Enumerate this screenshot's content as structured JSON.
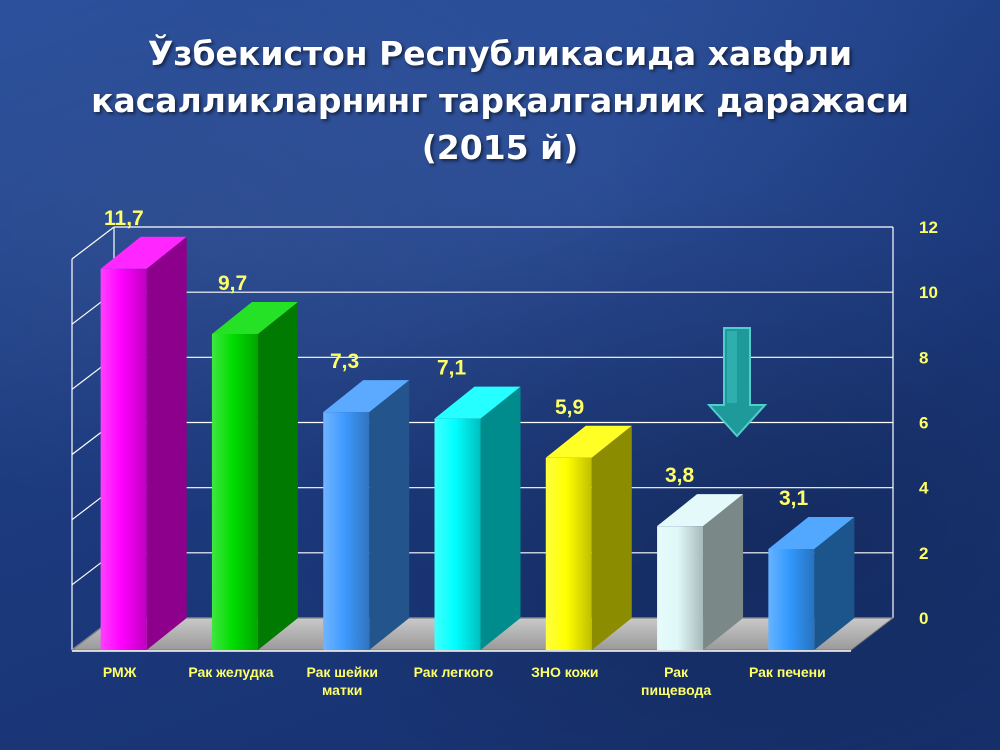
{
  "title": {
    "line1": "Ўзбекистон Республикасида хавфли",
    "line2": "касалликларнинг тарқалганлик даражаси",
    "line3": "(2015 й)"
  },
  "chart_data": {
    "type": "bar",
    "categories": [
      [
        "РМЖ"
      ],
      [
        "Рак желудка"
      ],
      [
        "Рак шейки",
        "матки"
      ],
      [
        "Рак легкого"
      ],
      [
        "ЗНО кожи"
      ],
      [
        "Рак",
        "пищевода"
      ],
      [
        "Рак печени"
      ]
    ],
    "values": [
      11.7,
      9.7,
      7.3,
      7.1,
      5.9,
      3.8,
      3.1
    ],
    "data_labels": [
      "11,7",
      "9,7",
      "7,3",
      "7,1",
      "5,9",
      "3,8",
      "3,1"
    ],
    "bar_colors": [
      "#ff00ff",
      "#00dd00",
      "#3f9bff",
      "#00ffff",
      "#ffff00",
      "#dff8f8",
      "#3399ff"
    ],
    "y_ticks": [
      0,
      2,
      4,
      6,
      8,
      10,
      12
    ],
    "ylim": [
      0,
      12
    ],
    "grid": true,
    "label_color": "#ffff66",
    "annotation": "down-arrow-icon"
  }
}
